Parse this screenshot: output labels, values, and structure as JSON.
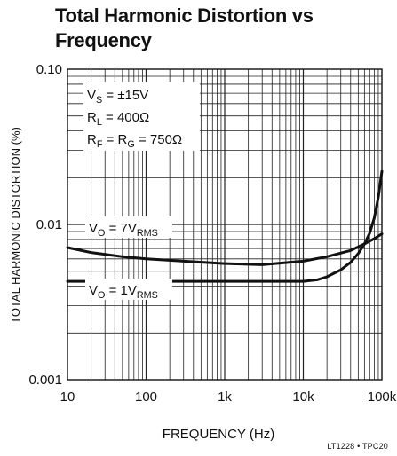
{
  "chart_data": {
    "type": "line",
    "title_lines": [
      "Total Harmonic Distortion vs",
      "Frequency"
    ],
    "xlabel": "FREQUENCY (Hz)",
    "ylabel": "TOTAL HARMONIC DISTORTION (%)",
    "x_scale": "log",
    "y_scale": "log",
    "xlim": [
      10,
      100000
    ],
    "ylim": [
      0.001,
      0.1
    ],
    "x_ticks": [
      10,
      100,
      1000,
      10000,
      100000
    ],
    "x_tick_labels": [
      "10",
      "100",
      "1k",
      "10k",
      "100k"
    ],
    "y_ticks": [
      0.001,
      0.01,
      0.1
    ],
    "y_tick_labels": [
      "0.001",
      "0.01",
      "0.10"
    ],
    "grid": true,
    "conditions": [
      {
        "base": "V",
        "sub": "S",
        "rest": " = ±15V"
      },
      {
        "base": "R",
        "sub": "L",
        "rest": " = 400Ω"
      },
      {
        "base": "R",
        "sub": "F",
        "rest": " = R",
        "sub2": "G",
        "rest2": " = 750Ω"
      }
    ],
    "series": [
      {
        "label_base": "V",
        "label_sub": "O",
        "label_mid": " = 7V",
        "label_sub2": "RMS",
        "x": [
          10,
          20,
          50,
          100,
          300,
          1000,
          3000,
          10000,
          20000,
          40000,
          60000,
          80000,
          100000
        ],
        "y": [
          0.0071,
          0.0066,
          0.0062,
          0.006,
          0.0058,
          0.0056,
          0.0055,
          0.0058,
          0.0062,
          0.0068,
          0.0075,
          0.0081,
          0.0087
        ]
      },
      {
        "label_base": "V",
        "label_sub": "O",
        "label_mid": " = 1V",
        "label_sub2": "RMS",
        "x": [
          10,
          100,
          1000,
          10000,
          15000,
          20000,
          30000,
          40000,
          50000,
          60000,
          70000,
          80000,
          90000,
          100000
        ],
        "y": [
          0.0043,
          0.0043,
          0.0043,
          0.0043,
          0.0044,
          0.0046,
          0.0051,
          0.0057,
          0.0065,
          0.0075,
          0.0088,
          0.011,
          0.015,
          0.022
        ]
      }
    ]
  },
  "footnote": "LT1228 • TPC20"
}
